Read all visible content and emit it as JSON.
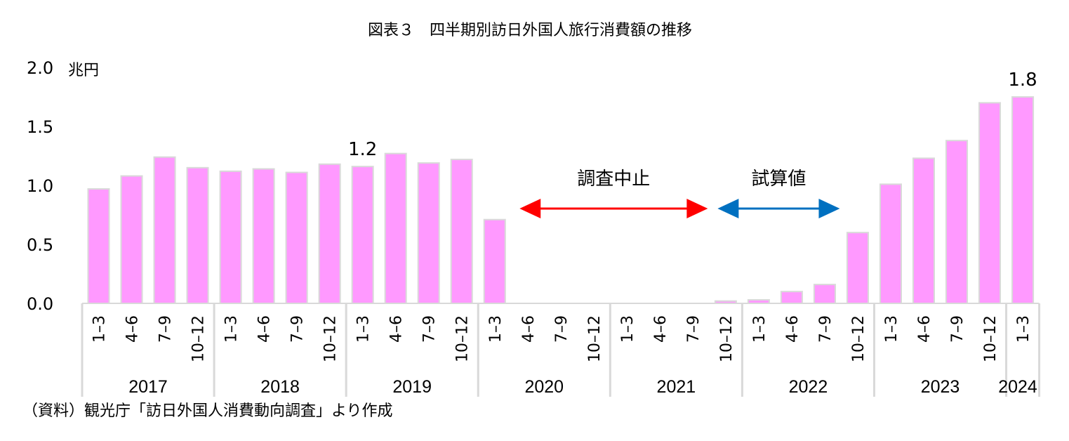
{
  "chart_data": {
    "type": "bar",
    "title": "図表３　四半期別訪日外国人旅行消費額の推移",
    "unit": "兆円",
    "ylim": [
      0,
      2.0
    ],
    "yticks": [
      "0.0",
      "0.5",
      "1.0",
      "1.5",
      "2.0"
    ],
    "bar_color": "#ff99ff",
    "categories": [
      {
        "quarter": "1–3",
        "year": "2017"
      },
      {
        "quarter": "4–6",
        "year": "2017"
      },
      {
        "quarter": "7–9",
        "year": "2017"
      },
      {
        "quarter": "10–12",
        "year": "2017"
      },
      {
        "quarter": "1–3",
        "year": "2018"
      },
      {
        "quarter": "4–6",
        "year": "2018"
      },
      {
        "quarter": "7–9",
        "year": "2018"
      },
      {
        "quarter": "10–12",
        "year": "2018"
      },
      {
        "quarter": "1–3",
        "year": "2019"
      },
      {
        "quarter": "4–6",
        "year": "2019"
      },
      {
        "quarter": "7–9",
        "year": "2019"
      },
      {
        "quarter": "10–12",
        "year": "2019"
      },
      {
        "quarter": "1–3",
        "year": "2020"
      },
      {
        "quarter": "4–6",
        "year": "2020"
      },
      {
        "quarter": "7–9",
        "year": "2020"
      },
      {
        "quarter": "10–12",
        "year": "2020"
      },
      {
        "quarter": "1–3",
        "year": "2021"
      },
      {
        "quarter": "4–6",
        "year": "2021"
      },
      {
        "quarter": "7–9",
        "year": "2021"
      },
      {
        "quarter": "10–12",
        "year": "2021"
      },
      {
        "quarter": "1–3",
        "year": "2022"
      },
      {
        "quarter": "4–6",
        "year": "2022"
      },
      {
        "quarter": "7–9",
        "year": "2022"
      },
      {
        "quarter": "10–12",
        "year": "2022"
      },
      {
        "quarter": "1–3",
        "year": "2023"
      },
      {
        "quarter": "4–6",
        "year": "2023"
      },
      {
        "quarter": "7–9",
        "year": "2023"
      },
      {
        "quarter": "10–12",
        "year": "2023"
      },
      {
        "quarter": "1–3",
        "year": "2024"
      }
    ],
    "years": [
      "2017",
      "2018",
      "2019",
      "2020",
      "2021",
      "2022",
      "2023",
      "2024"
    ],
    "values": [
      0.97,
      1.08,
      1.24,
      1.15,
      1.12,
      1.14,
      1.11,
      1.18,
      1.16,
      1.27,
      1.19,
      1.22,
      0.71,
      null,
      null,
      null,
      null,
      null,
      null,
      0.02,
      0.03,
      0.1,
      0.16,
      0.6,
      1.01,
      1.23,
      1.38,
      1.7,
      1.75
    ],
    "data_labels": [
      {
        "index": 8,
        "text": "1.2"
      },
      {
        "index": 28,
        "text": "1.8"
      }
    ],
    "annotations": [
      {
        "text": "調査中止",
        "from": 13,
        "to": 18,
        "color": "#ff0000"
      },
      {
        "text": "試算値",
        "from": 19,
        "to": 22,
        "color": "#0070c0"
      }
    ]
  },
  "source": "（資料）観光庁「訪日外国人消費動向調査」より作成"
}
